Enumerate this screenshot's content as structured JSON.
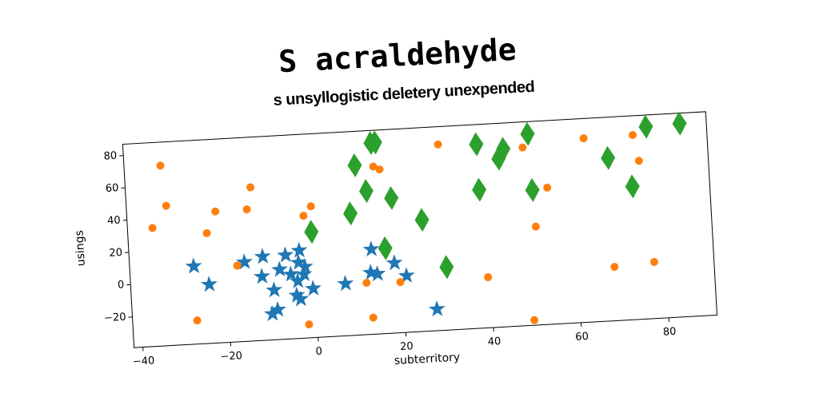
{
  "chart_data": {
    "type": "scatter",
    "title": "S acraldehyde",
    "subtitle": "s unsyllogistic deletery unexpended",
    "x_label": "subterritory",
    "y_label": "usings",
    "xlim": [
      -42,
      91
    ],
    "ylim": [
      -39,
      87
    ],
    "xticks": [
      {
        "value": -40,
        "label": "−40"
      },
      {
        "value": -20,
        "label": "−20"
      },
      0,
      20,
      40,
      60,
      80
    ],
    "yticks": [
      {
        "value": -20,
        "label": "−20"
      },
      0,
      20,
      40,
      60,
      80
    ],
    "series": [
      {
        "color": "#1f77b4",
        "marker": "star",
        "x": [
          -27.4,
          -24.1,
          -15.8,
          -11.6,
          -12,
          -10.1,
          -8.8,
          -9.4,
          -7.9,
          -6.4,
          -5.4,
          -3.2,
          -3.5,
          -4.3,
          -3.9,
          -2.4,
          -3.5,
          -0.5,
          6.9,
          13.2,
          12.8,
          14.3,
          18.3,
          20.9,
          27.4,
          -2.1
        ],
        "values": [
          9.2,
          -2.6,
          10,
          12.8,
          0.5,
          -22.9,
          -20.6,
          -8.3,
          4.2,
          12.9,
          0.9,
          15.3,
          7.9,
          -12.3,
          -3.5,
          0.4,
          -14.8,
          -8.7,
          -6.8,
          13.5,
          -0.8,
          -1.9,
          4.3,
          -4,
          -25.7,
          5
        ]
      },
      {
        "color": "#ff7f0e",
        "marker": "circle",
        "x": [
          -33.7,
          -32.9,
          -36.3,
          -27.3,
          -24,
          -21.8,
          -17.5,
          -14.6,
          -13.5,
          -1.8,
          0,
          -1.9,
          14.7,
          16.1,
          11.7,
          12.8,
          19.4,
          29.7,
          39.4,
          48.9,
          54,
          50.9,
          49.4,
          62.9,
          68.3,
          74.1,
          75.2,
          77.4
        ],
        "values": [
          72.5,
          47.5,
          34.3,
          -24.4,
          29.2,
          42.3,
          8.1,
          42.5,
          56,
          36.6,
          42.2,
          -30.7,
          64.6,
          62.6,
          -7,
          -28.7,
          -7.7,
          76,
          -7.7,
          71.2,
          45.6,
          21.9,
          -35.8,
          74.8,
          -5.7,
          75.1,
          59,
          -4
        ]
      },
      {
        "color": "#2ca02c",
        "marker": "diamond",
        "x": [
          -0.2,
          8.9,
          10.5,
          12.8,
          14.4,
          15.4,
          18.4,
          16.4,
          25.1,
          30.1,
          38.4,
          38.5,
          43.3,
          44.5,
          50.2,
          50.6,
          68.2,
          73.4,
          77.2,
          84.9
        ],
        "values": [
          26.4,
          36.4,
          66,
          49.7,
          79.2,
          79.4,
          44.5,
          13.7,
          30,
          0,
          74.8,
          46.6,
          65.1,
          71,
          79.4,
          44.6,
          61.8,
          43.4,
          79.8,
          80.6
        ]
      }
    ]
  }
}
